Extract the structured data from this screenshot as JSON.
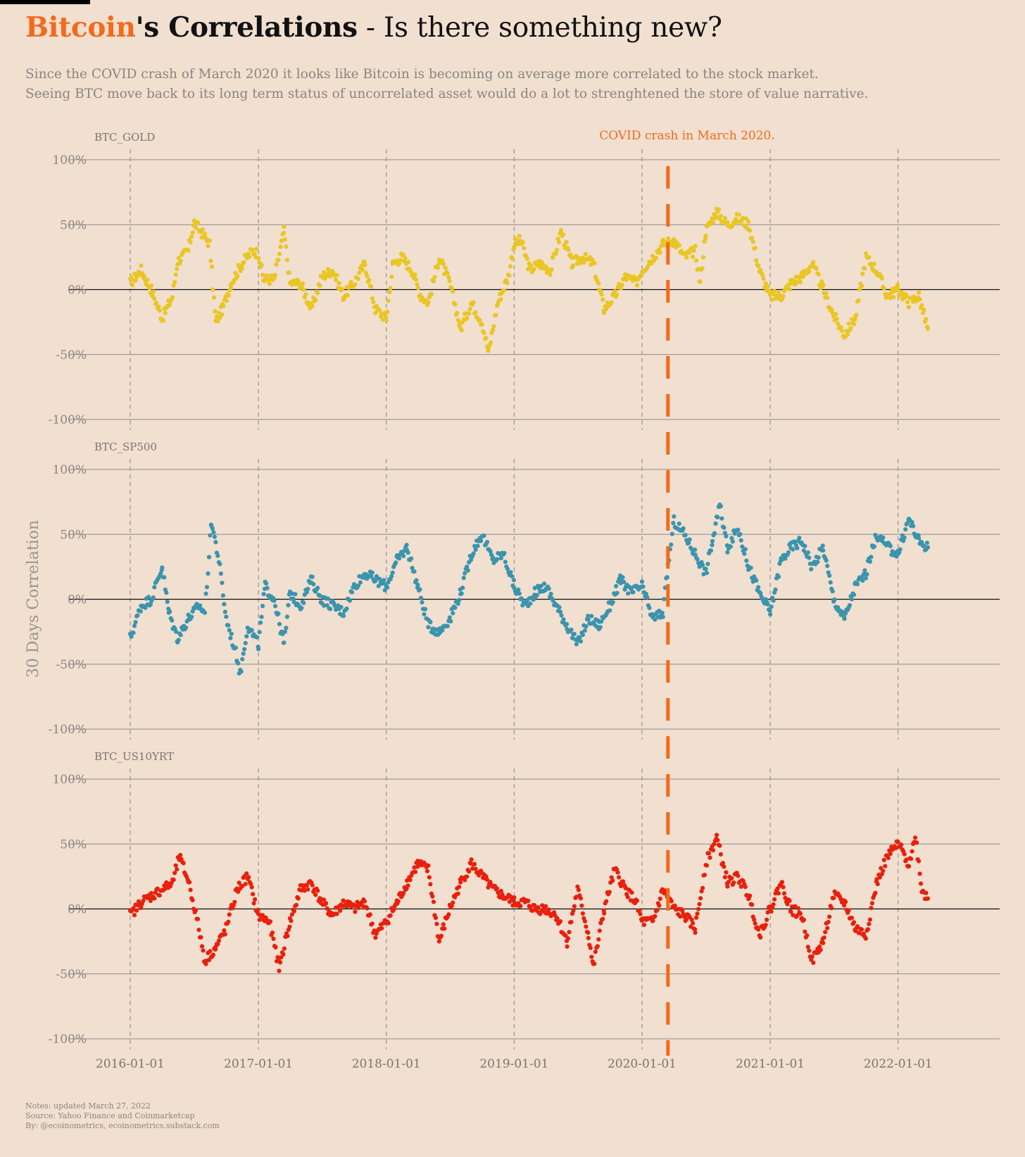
{
  "title": {
    "accent": "Bitcoin",
    "bold": "'s Correlations",
    "rest": " - Is there something new?"
  },
  "subtitle": [
    "Since the COVID crash of March 2020 it looks like Bitcoin is becoming on average more correlated to the stock market.",
    "Seeing BTC move back to its long term status of uncorrelated asset would do a lot to strenghtened the store of value narrative."
  ],
  "notes": [
    "Notes: updated March 27, 2022",
    "Source: Yahoo Finance and Coinmarketcap",
    "By: @ecoinometrics, ecoinometrics.substack.com"
  ],
  "colors": {
    "background": "#f1dfd0",
    "accent": "#f26a1b",
    "gold": "#e9c623",
    "sp500": "#3b94ad",
    "us10yrt": "#e8200c",
    "grid": "#8c8c8c"
  },
  "chart_data": {
    "type": "scatter",
    "ylabel": "30 Days Correlation",
    "y_ticks": [
      "100%",
      "50%",
      "0%",
      "-50%",
      "-100%"
    ],
    "x_ticks": [
      "2016-01-01",
      "2017-01-01",
      "2018-01-01",
      "2019-01-01",
      "2020-01-01",
      "2021-01-01",
      "2022-01-01"
    ],
    "xlim": [
      "2016-01-01",
      "2022-03-27"
    ],
    "ylim": [
      -100,
      100
    ],
    "annotation": {
      "label": "COVID crash in March 2020.",
      "x": "2020-03-15"
    },
    "series": [
      {
        "name": "BTC_GOLD",
        "color": "#e9c623",
        "points": [
          [
            "2016-01-01",
            5
          ],
          [
            "2016-02-01",
            15
          ],
          [
            "2016-03-01",
            0
          ],
          [
            "2016-04-01",
            -22
          ],
          [
            "2016-05-01",
            -5
          ],
          [
            "2016-05-15",
            22
          ],
          [
            "2016-06-15",
            30
          ],
          [
            "2016-07-01",
            52
          ],
          [
            "2016-07-20",
            45
          ],
          [
            "2016-08-15",
            35
          ],
          [
            "2016-09-01",
            -25
          ],
          [
            "2016-09-20",
            -15
          ],
          [
            "2016-10-15",
            5
          ],
          [
            "2016-11-15",
            20
          ],
          [
            "2016-12-15",
            30
          ],
          [
            "2017-01-01",
            28
          ],
          [
            "2017-01-15",
            8
          ],
          [
            "2017-02-15",
            8
          ],
          [
            "2017-03-15",
            45
          ],
          [
            "2017-04-01",
            5
          ],
          [
            "2017-05-01",
            5
          ],
          [
            "2017-06-01",
            -15
          ],
          [
            "2017-07-01",
            10
          ],
          [
            "2017-08-01",
            15
          ],
          [
            "2017-09-01",
            -5
          ],
          [
            "2017-10-01",
            5
          ],
          [
            "2017-11-01",
            20
          ],
          [
            "2017-12-01",
            -15
          ],
          [
            "2018-01-01",
            -22
          ],
          [
            "2018-01-20",
            20
          ],
          [
            "2018-02-15",
            25
          ],
          [
            "2018-03-15",
            15
          ],
          [
            "2018-04-10",
            -5
          ],
          [
            "2018-05-01",
            -10
          ],
          [
            "2018-06-01",
            25
          ],
          [
            "2018-07-01",
            5
          ],
          [
            "2018-08-01",
            -30
          ],
          [
            "2018-09-01",
            -10
          ],
          [
            "2018-10-01",
            -25
          ],
          [
            "2018-10-20",
            -48
          ],
          [
            "2018-11-15",
            -10
          ],
          [
            "2018-12-15",
            10
          ],
          [
            "2019-01-01",
            35
          ],
          [
            "2019-01-20",
            38
          ],
          [
            "2019-02-15",
            15
          ],
          [
            "2019-03-15",
            20
          ],
          [
            "2019-04-15",
            15
          ],
          [
            "2019-05-15",
            45
          ],
          [
            "2019-06-15",
            20
          ],
          [
            "2019-07-15",
            25
          ],
          [
            "2019-08-15",
            20
          ],
          [
            "2019-09-15",
            -15
          ],
          [
            "2019-10-15",
            -5
          ],
          [
            "2019-11-15",
            10
          ],
          [
            "2019-12-15",
            5
          ],
          [
            "2020-01-01",
            15
          ],
          [
            "2020-02-01",
            25
          ],
          [
            "2020-03-01",
            35
          ],
          [
            "2020-04-01",
            38
          ],
          [
            "2020-05-01",
            25
          ],
          [
            "2020-06-01",
            30
          ],
          [
            "2020-06-15",
            5
          ],
          [
            "2020-07-01",
            45
          ],
          [
            "2020-08-01",
            60
          ],
          [
            "2020-09-01",
            50
          ],
          [
            "2020-10-01",
            55
          ],
          [
            "2020-11-01",
            50
          ],
          [
            "2020-12-01",
            15
          ],
          [
            "2021-01-01",
            -5
          ],
          [
            "2021-02-01",
            -5
          ],
          [
            "2021-03-01",
            5
          ],
          [
            "2021-04-01",
            10
          ],
          [
            "2021-05-01",
            20
          ],
          [
            "2021-06-01",
            0
          ],
          [
            "2021-07-01",
            -20
          ],
          [
            "2021-08-01",
            -35
          ],
          [
            "2021-09-01",
            -22
          ],
          [
            "2021-10-01",
            25
          ],
          [
            "2021-11-01",
            15
          ],
          [
            "2021-12-01",
            -5
          ],
          [
            "2022-01-01",
            0
          ],
          [
            "2022-02-01",
            -10
          ],
          [
            "2022-03-01",
            -5
          ],
          [
            "2022-03-27",
            -30
          ]
        ]
      },
      {
        "name": "BTC_SP500",
        "color": "#3b94ad",
        "points": [
          [
            "2016-01-01",
            -30
          ],
          [
            "2016-02-01",
            -5
          ],
          [
            "2016-03-01",
            0
          ],
          [
            "2016-04-01",
            25
          ],
          [
            "2016-04-20",
            -10
          ],
          [
            "2016-05-15",
            -30
          ],
          [
            "2016-06-15",
            -15
          ],
          [
            "2016-07-15",
            -5
          ],
          [
            "2016-08-01",
            -10
          ],
          [
            "2016-08-20",
            60
          ],
          [
            "2016-09-10",
            30
          ],
          [
            "2016-10-01",
            -15
          ],
          [
            "2016-11-01",
            -45
          ],
          [
            "2016-11-10",
            -58
          ],
          [
            "2016-12-01",
            -20
          ],
          [
            "2017-01-01",
            -35
          ],
          [
            "2017-01-20",
            10
          ],
          [
            "2017-02-15",
            0
          ],
          [
            "2017-03-15",
            -35
          ],
          [
            "2017-04-01",
            5
          ],
          [
            "2017-05-01",
            -5
          ],
          [
            "2017-06-01",
            15
          ],
          [
            "2017-07-01",
            0
          ],
          [
            "2017-08-01",
            -5
          ],
          [
            "2017-09-01",
            -10
          ],
          [
            "2017-10-01",
            10
          ],
          [
            "2017-11-01",
            20
          ],
          [
            "2017-12-01",
            15
          ],
          [
            "2018-01-01",
            10
          ],
          [
            "2018-02-01",
            30
          ],
          [
            "2018-03-01",
            40
          ],
          [
            "2018-04-01",
            10
          ],
          [
            "2018-05-01",
            -20
          ],
          [
            "2018-06-01",
            -25
          ],
          [
            "2018-07-01",
            -15
          ],
          [
            "2018-08-01",
            5
          ],
          [
            "2018-09-01",
            35
          ],
          [
            "2018-10-01",
            50
          ],
          [
            "2018-11-01",
            30
          ],
          [
            "2018-12-01",
            35
          ],
          [
            "2019-01-01",
            10
          ],
          [
            "2019-02-01",
            -5
          ],
          [
            "2019-03-01",
            5
          ],
          [
            "2019-04-01",
            10
          ],
          [
            "2019-05-01",
            -5
          ],
          [
            "2019-06-01",
            -20
          ],
          [
            "2019-07-01",
            -35
          ],
          [
            "2019-08-01",
            -15
          ],
          [
            "2019-09-01",
            -20
          ],
          [
            "2019-10-01",
            -5
          ],
          [
            "2019-11-01",
            15
          ],
          [
            "2019-12-01",
            5
          ],
          [
            "2020-01-01",
            10
          ],
          [
            "2020-02-01",
            -15
          ],
          [
            "2020-03-01",
            -10
          ],
          [
            "2020-03-15",
            25
          ],
          [
            "2020-04-01",
            60
          ],
          [
            "2020-05-01",
            50
          ],
          [
            "2020-06-01",
            35
          ],
          [
            "2020-07-01",
            20
          ],
          [
            "2020-07-20",
            45
          ],
          [
            "2020-08-10",
            72
          ],
          [
            "2020-09-01",
            40
          ],
          [
            "2020-10-01",
            55
          ],
          [
            "2020-11-01",
            25
          ],
          [
            "2020-12-01",
            5
          ],
          [
            "2021-01-01",
            -10
          ],
          [
            "2021-02-01",
            30
          ],
          [
            "2021-03-01",
            40
          ],
          [
            "2021-04-01",
            45
          ],
          [
            "2021-05-01",
            25
          ],
          [
            "2021-06-01",
            40
          ],
          [
            "2021-07-01",
            0
          ],
          [
            "2021-08-01",
            -15
          ],
          [
            "2021-09-01",
            10
          ],
          [
            "2021-10-01",
            20
          ],
          [
            "2021-11-01",
            50
          ],
          [
            "2021-12-01",
            40
          ],
          [
            "2022-01-01",
            35
          ],
          [
            "2022-02-01",
            62
          ],
          [
            "2022-03-01",
            45
          ],
          [
            "2022-03-27",
            40
          ]
        ]
      },
      {
        "name": "BTC_US10YRT",
        "color": "#e8200c",
        "points": [
          [
            "2016-01-01",
            -5
          ],
          [
            "2016-02-01",
            5
          ],
          [
            "2016-03-01",
            10
          ],
          [
            "2016-04-01",
            15
          ],
          [
            "2016-05-01",
            20
          ],
          [
            "2016-05-20",
            40
          ],
          [
            "2016-06-15",
            22
          ],
          [
            "2016-07-15",
            -15
          ],
          [
            "2016-08-01",
            -40
          ],
          [
            "2016-09-01",
            -30
          ],
          [
            "2016-10-01",
            -15
          ],
          [
            "2016-11-01",
            15
          ],
          [
            "2016-12-01",
            25
          ],
          [
            "2017-01-01",
            -5
          ],
          [
            "2017-02-01",
            -10
          ],
          [
            "2017-03-01",
            -45
          ],
          [
            "2017-04-01",
            -10
          ],
          [
            "2017-05-01",
            15
          ],
          [
            "2017-06-01",
            20
          ],
          [
            "2017-07-01",
            5
          ],
          [
            "2017-08-01",
            -5
          ],
          [
            "2017-09-01",
            5
          ],
          [
            "2017-10-01",
            0
          ],
          [
            "2017-11-01",
            5
          ],
          [
            "2017-12-01",
            -20
          ],
          [
            "2018-01-01",
            -10
          ],
          [
            "2018-02-01",
            5
          ],
          [
            "2018-03-01",
            20
          ],
          [
            "2018-04-01",
            35
          ],
          [
            "2018-05-01",
            30
          ],
          [
            "2018-06-01",
            -25
          ],
          [
            "2018-07-01",
            0
          ],
          [
            "2018-08-01",
            20
          ],
          [
            "2018-09-01",
            35
          ],
          [
            "2018-10-01",
            25
          ],
          [
            "2018-11-01",
            15
          ],
          [
            "2018-12-01",
            10
          ],
          [
            "2019-01-01",
            5
          ],
          [
            "2019-02-01",
            5
          ],
          [
            "2019-03-01",
            0
          ],
          [
            "2019-04-01",
            0
          ],
          [
            "2019-05-01",
            -5
          ],
          [
            "2019-06-01",
            -25
          ],
          [
            "2019-07-01",
            15
          ],
          [
            "2019-08-01",
            -20
          ],
          [
            "2019-08-15",
            -45
          ],
          [
            "2019-09-15",
            0
          ],
          [
            "2019-10-15",
            30
          ],
          [
            "2019-11-15",
            15
          ],
          [
            "2019-12-15",
            5
          ],
          [
            "2020-01-01",
            -10
          ],
          [
            "2020-02-01",
            -10
          ],
          [
            "2020-03-01",
            15
          ],
          [
            "2020-04-01",
            0
          ],
          [
            "2020-05-01",
            -5
          ],
          [
            "2020-06-01",
            -15
          ],
          [
            "2020-07-01",
            35
          ],
          [
            "2020-08-01",
            55
          ],
          [
            "2020-09-01",
            20
          ],
          [
            "2020-10-01",
            25
          ],
          [
            "2020-11-01",
            10
          ],
          [
            "2020-12-01",
            -20
          ],
          [
            "2021-01-01",
            0
          ],
          [
            "2021-02-01",
            20
          ],
          [
            "2021-03-01",
            0
          ],
          [
            "2021-04-01",
            -5
          ],
          [
            "2021-05-01",
            -40
          ],
          [
            "2021-06-01",
            -25
          ],
          [
            "2021-07-01",
            10
          ],
          [
            "2021-08-01",
            5
          ],
          [
            "2021-09-01",
            -15
          ],
          [
            "2021-10-01",
            -20
          ],
          [
            "2021-11-01",
            20
          ],
          [
            "2021-12-01",
            40
          ],
          [
            "2022-01-01",
            50
          ],
          [
            "2022-02-01",
            35
          ],
          [
            "2022-02-20",
            55
          ],
          [
            "2022-03-10",
            15
          ],
          [
            "2022-03-27",
            8
          ]
        ]
      }
    ]
  }
}
